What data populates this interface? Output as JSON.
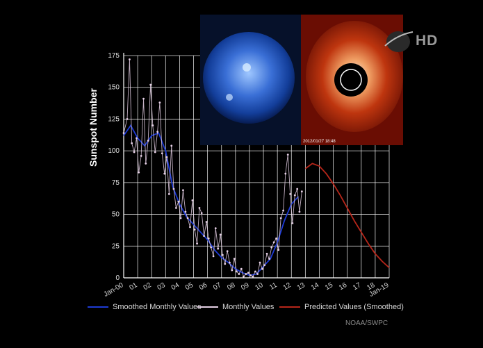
{
  "chart_data": {
    "type": "line",
    "ylabel": "Sunspot Number",
    "xlabel": "",
    "ylim": [
      0,
      175
    ],
    "yticks": [
      0,
      25,
      50,
      75,
      100,
      125,
      150,
      175
    ],
    "xlim": [
      2000,
      2019
    ],
    "xtick_labels": [
      "Jan-00",
      "01",
      "02",
      "03",
      "04",
      "05",
      "06",
      "07",
      "08",
      "09",
      "10",
      "11",
      "12",
      "13",
      "14",
      "15",
      "16",
      "17",
      "18",
      "Jan-19"
    ],
    "grid": true,
    "legend": "bottom",
    "series": [
      {
        "name": "Smoothed Monthly Values",
        "color": "#1e3bd6",
        "x": [
          2000.0,
          2000.5,
          2001.0,
          2001.5,
          2002.0,
          2002.5,
          2003.0,
          2003.5,
          2004.0,
          2004.5,
          2005.0,
          2005.5,
          2006.0,
          2006.5,
          2007.0,
          2007.5,
          2008.0,
          2008.5,
          2009.0,
          2009.5,
          2010.0,
          2010.5,
          2011.0,
          2011.5,
          2012.0,
          2012.5
        ],
        "y": [
          112,
          120,
          110,
          104,
          112,
          114,
          100,
          72,
          58,
          48,
          42,
          36,
          30,
          22,
          16,
          12,
          7,
          4,
          2,
          3,
          9,
          15,
          28,
          45,
          58,
          64
        ]
      },
      {
        "name": "Monthly Values",
        "color": "#e6d0e6",
        "x": [
          2000.0,
          2000.25,
          2000.42,
          2000.58,
          2000.75,
          2000.92,
          2001.08,
          2001.25,
          2001.42,
          2001.58,
          2001.75,
          2001.92,
          2002.08,
          2002.25,
          2002.42,
          2002.58,
          2002.75,
          2002.92,
          2003.08,
          2003.25,
          2003.42,
          2003.58,
          2003.75,
          2003.92,
          2004.08,
          2004.25,
          2004.42,
          2004.58,
          2004.75,
          2004.92,
          2005.08,
          2005.25,
          2005.42,
          2005.58,
          2005.75,
          2005.92,
          2006.08,
          2006.25,
          2006.42,
          2006.58,
          2006.75,
          2006.92,
          2007.08,
          2007.25,
          2007.42,
          2007.58,
          2007.75,
          2007.92,
          2008.08,
          2008.25,
          2008.42,
          2008.58,
          2008.75,
          2008.92,
          2009.08,
          2009.25,
          2009.42,
          2009.58,
          2009.75,
          2009.92,
          2010.08,
          2010.25,
          2010.42,
          2010.58,
          2010.75,
          2010.92,
          2011.08,
          2011.25,
          2011.42,
          2011.58,
          2011.75,
          2011.92,
          2012.08,
          2012.25,
          2012.42,
          2012.58,
          2012.75
        ],
        "y": [
          114,
          125,
          172,
          106,
          99,
          110,
          83,
          96,
          141,
          90,
          108,
          152,
          120,
          99,
          115,
          138,
          98,
          82,
          95,
          66,
          104,
          70,
          55,
          60,
          47,
          69,
          52,
          47,
          40,
          61,
          38,
          27,
          55,
          51,
          33,
          44,
          31,
          24,
          17,
          39,
          23,
          34,
          18,
          11,
          21,
          12,
          6,
          15,
          5,
          3,
          7,
          1,
          3,
          4,
          2,
          1,
          5,
          3,
          12,
          7,
          10,
          19,
          15,
          24,
          28,
          31,
          22,
          47,
          53,
          82,
          97,
          66,
          43,
          65,
          70,
          52,
          68
        ]
      },
      {
        "name": "Predicted Values (Smoothed)",
        "color": "#b8261a",
        "x": [
          2013.0,
          2013.5,
          2014.0,
          2014.5,
          2015.0,
          2015.5,
          2016.0,
          2016.5,
          2017.0,
          2017.5,
          2018.0,
          2018.5,
          2019.0
        ],
        "y": [
          86,
          90,
          88,
          82,
          74,
          65,
          55,
          45,
          36,
          27,
          19,
          13,
          8
        ]
      }
    ]
  },
  "legend": {
    "smoothed": "Smoothed Monthly Values",
    "monthly": "Monthly Values",
    "predicted": "Predicted Values (Smoothed)"
  },
  "source": "NOAA/SWPC",
  "logo_text": "NASA",
  "badge": "HD",
  "photos": {
    "left_caption": "",
    "right_caption": "2012/01/27 18:48"
  }
}
